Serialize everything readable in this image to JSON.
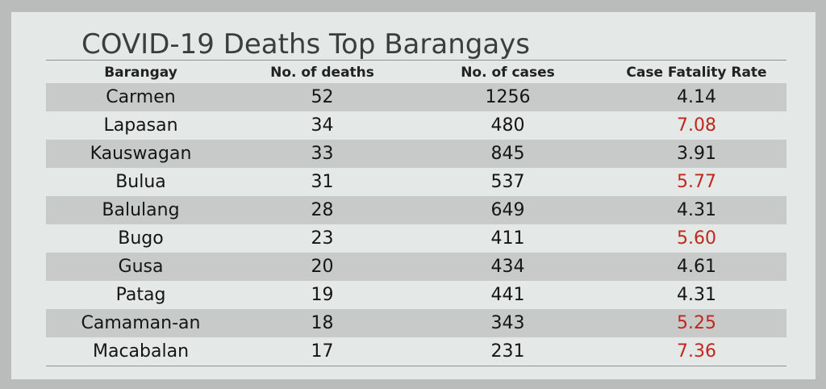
{
  "title": "COVID-19 Deaths Top Barangays",
  "columns": [
    "Barangay",
    "No. of deaths",
    "No. of cases",
    "Case Fatality Rate"
  ],
  "rows": [
    {
      "barangay": "Carmen",
      "deaths": "52",
      "cases": "1256",
      "cfr": "4.14",
      "highlight": false
    },
    {
      "barangay": "Lapasan",
      "deaths": "34",
      "cases": "480",
      "cfr": "7.08",
      "highlight": true
    },
    {
      "barangay": "Kauswagan",
      "deaths": "33",
      "cases": "845",
      "cfr": "3.91",
      "highlight": false
    },
    {
      "barangay": "Bulua",
      "deaths": "31",
      "cases": "537",
      "cfr": "5.77",
      "highlight": true
    },
    {
      "barangay": "Balulang",
      "deaths": "28",
      "cases": "649",
      "cfr": "4.31",
      "highlight": false
    },
    {
      "barangay": "Bugo",
      "deaths": "23",
      "cases": "411",
      "cfr": "5.60",
      "highlight": true
    },
    {
      "barangay": "Gusa",
      "deaths": "20",
      "cases": "434",
      "cfr": "4.61",
      "highlight": false
    },
    {
      "barangay": "Patag",
      "deaths": "19",
      "cases": "441",
      "cfr": "4.31",
      "highlight": false
    },
    {
      "barangay": "Camaman-an",
      "deaths": "18",
      "cases": "343",
      "cfr": "5.25",
      "highlight": true
    },
    {
      "barangay": "Macabalan",
      "deaths": "17",
      "cases": "231",
      "cfr": "7.36",
      "highlight": true
    }
  ],
  "colors": {
    "highlight_rate": "#c0281c",
    "normal_text": "#151515",
    "shaded_row": "#c8cac9",
    "slide_background": "#e4e8e6"
  }
}
